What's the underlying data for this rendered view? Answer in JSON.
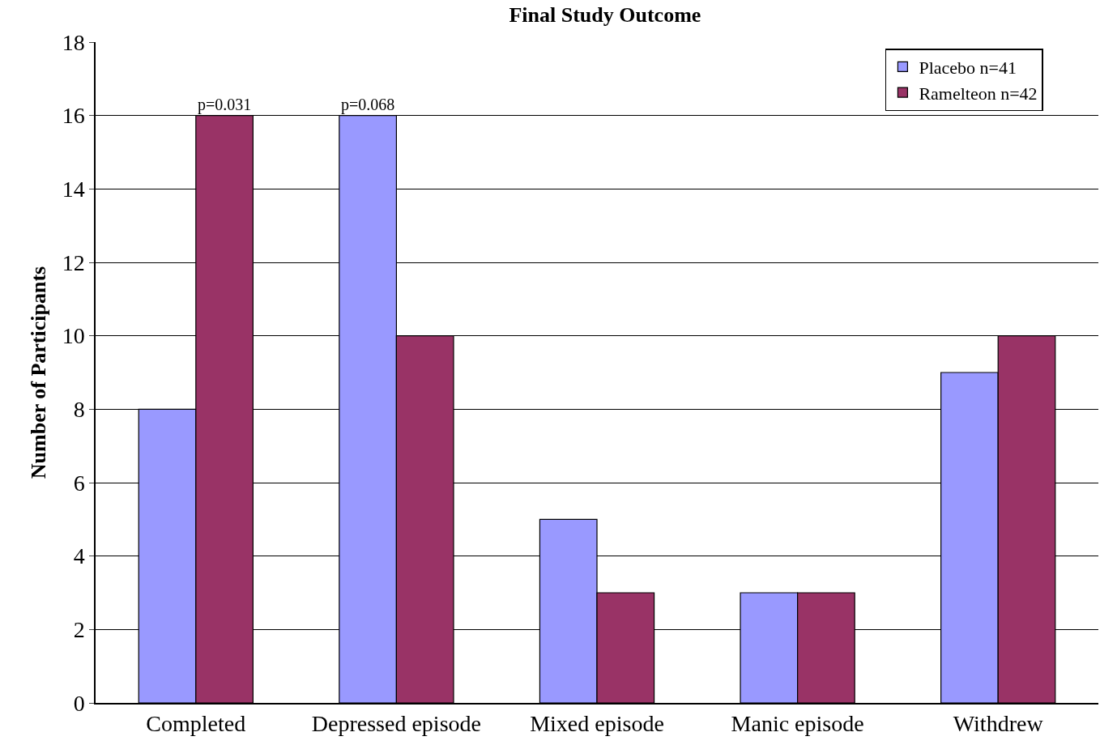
{
  "chart_data": {
    "type": "bar",
    "title": "Final Study Outcome",
    "ylabel": "Number of Participants",
    "categories": [
      "Completed",
      "Depressed episode",
      "Mixed episode",
      "Manic episode",
      "Withdrew"
    ],
    "series": [
      {
        "name": "Placebo n=41",
        "color": "#9999ff",
        "values": [
          8,
          16,
          5,
          3,
          9
        ]
      },
      {
        "name": "Ramelteon n=42",
        "color": "#993366",
        "values": [
          16,
          10,
          3,
          3,
          10
        ]
      }
    ],
    "ylim": [
      0,
      18
    ],
    "yticks": [
      0,
      2,
      4,
      6,
      8,
      10,
      12,
      14,
      16,
      18
    ],
    "grid": "y",
    "legend": "top right",
    "annotations": [
      {
        "text": "p=0.031",
        "x": "Completed",
        "y": 16
      },
      {
        "text": "p=0.068",
        "x": "Depressed episode",
        "y": 16
      }
    ]
  }
}
